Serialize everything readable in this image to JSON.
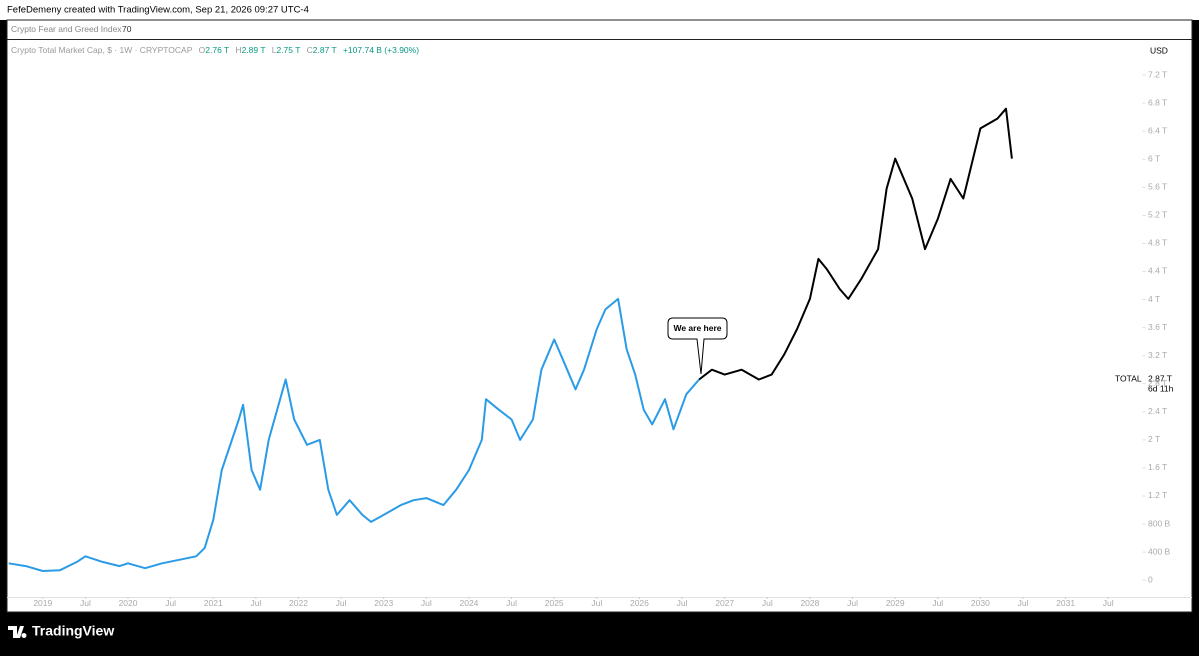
{
  "header": {
    "credit": "FefeDemeny created with TradingView.com, Sep 21, 2026 09:27 UTC-4"
  },
  "indicator": {
    "name": "Crypto Fear and Greed Index",
    "value": "70"
  },
  "legend": {
    "symbol": "Crypto Total Market Cap, $ · 1W · CRYPTOCAP",
    "o_label": "O",
    "open": "2.76 T",
    "h_label": "H",
    "high": "2.89 T",
    "l_label": "L",
    "low": "2.75 T",
    "c_label": "C",
    "close": "2.87 T",
    "change": "+107.74 B (+3.90%)"
  },
  "currency": "USD",
  "price_label": {
    "name": "TOTAL",
    "value": "2.87 T",
    "countdown": "6d 11h"
  },
  "footer": {
    "brand": "TradingView"
  },
  "chart_data": {
    "type": "line",
    "annotation": "We are here",
    "xlim": [
      2018.58,
      2031.55
    ],
    "xticks": [
      {
        "value": 2019,
        "label": "2019"
      },
      {
        "value": 2019.5,
        "label": "Jul"
      },
      {
        "value": 2020,
        "label": "2020"
      },
      {
        "value": 2020.5,
        "label": "Jul"
      },
      {
        "value": 2021,
        "label": "2021"
      },
      {
        "value": 2021.5,
        "label": "Jul"
      },
      {
        "value": 2022,
        "label": "2022"
      },
      {
        "value": 2022.5,
        "label": "Jul"
      },
      {
        "value": 2023,
        "label": "2023"
      },
      {
        "value": 2023.5,
        "label": "Jul"
      },
      {
        "value": 2024,
        "label": "2024"
      },
      {
        "value": 2024.5,
        "label": "Jul"
      },
      {
        "value": 2025,
        "label": "2025"
      },
      {
        "value": 2025.5,
        "label": "Jul"
      },
      {
        "value": 2026,
        "label": "2026"
      },
      {
        "value": 2026.5,
        "label": "Jul"
      },
      {
        "value": 2027,
        "label": "2027"
      },
      {
        "value": 2027.5,
        "label": "Jul"
      },
      {
        "value": 2028,
        "label": "2028"
      },
      {
        "value": 2028.5,
        "label": "Jul"
      },
      {
        "value": 2029,
        "label": "2029"
      },
      {
        "value": 2029.5,
        "label": "Jul"
      },
      {
        "value": 2030,
        "label": "2030"
      },
      {
        "value": 2030.5,
        "label": "Jul"
      },
      {
        "value": 2031,
        "label": "2031"
      },
      {
        "value": 2031.5,
        "label": "Jul"
      }
    ],
    "ylim": [
      -0.24,
      7.7
    ],
    "yticks": [
      0,
      {
        "value": 0.4,
        "label": "400 B"
      },
      {
        "value": 0.8,
        "label": "800 B"
      },
      {
        "value": 1.2,
        "label": "1.2 T"
      },
      {
        "value": 1.6,
        "label": "1.6 T"
      },
      {
        "value": 2,
        "label": "2 T"
      },
      {
        "value": 2.4,
        "label": "2.4 T"
      },
      {
        "value": 2.8,
        "label": "2.8 T"
      },
      {
        "value": 3.2,
        "label": "3.2 T"
      },
      {
        "value": 3.6,
        "label": "3.6 T"
      },
      {
        "value": 4,
        "label": "4 T"
      },
      {
        "value": 4.4,
        "label": "4.4 T"
      },
      {
        "value": 4.8,
        "label": "4.8 T"
      },
      {
        "value": 5.2,
        "label": "5.2 T"
      },
      {
        "value": 5.6,
        "label": "5.6 T"
      },
      {
        "value": 6,
        "label": "6 T"
      },
      {
        "value": 6.4,
        "label": "6.4 T"
      },
      {
        "value": 6.8,
        "label": "6.8 T"
      },
      {
        "value": 7.2,
        "label": "7.2 T"
      }
    ],
    "series": [
      {
        "color": "#2a9be6",
        "x": [
          2018.6,
          2018.8,
          2019.0,
          2019.2,
          2019.4,
          2019.5,
          2019.7,
          2019.9,
          2020.0,
          2020.2,
          2020.4,
          2020.6,
          2020.8,
          2020.9,
          2021.0,
          2021.1,
          2021.3,
          2021.35,
          2021.45,
          2021.55,
          2021.65,
          2021.8,
          2021.85,
          2021.95,
          2022.1,
          2022.25,
          2022.35,
          2022.45,
          2022.6,
          2022.75,
          2022.85,
          2023.0,
          2023.2,
          2023.35,
          2023.5,
          2023.7,
          2023.85,
          2024.0,
          2024.15,
          2024.2,
          2024.35,
          2024.5,
          2024.6,
          2024.75,
          2024.85,
          2025.0,
          2025.1,
          2025.25,
          2025.35,
          2025.5,
          2025.6,
          2025.75,
          2025.85,
          2025.95,
          2026.05,
          2026.15,
          2026.3,
          2026.4,
          2026.55,
          2026.7
        ],
        "values": [
          0.24,
          0.2,
          0.13,
          0.14,
          0.26,
          0.34,
          0.26,
          0.2,
          0.24,
          0.17,
          0.24,
          0.29,
          0.34,
          0.46,
          0.86,
          1.57,
          2.29,
          2.5,
          1.57,
          1.29,
          2.0,
          2.65,
          2.86,
          2.29,
          1.93,
          2.0,
          1.29,
          0.93,
          1.14,
          0.93,
          0.83,
          0.93,
          1.07,
          1.14,
          1.17,
          1.07,
          1.29,
          1.57,
          2.0,
          2.58,
          2.43,
          2.29,
          2.0,
          2.29,
          3.0,
          3.43,
          3.15,
          2.72,
          3.0,
          3.58,
          3.86,
          4.01,
          3.29,
          2.93,
          2.43,
          2.22,
          2.58,
          2.15,
          2.65,
          2.86
        ]
      },
      {
        "color": "#000000",
        "x": [
          2026.7,
          2026.85,
          2027.0,
          2027.2,
          2027.4,
          2027.55,
          2027.7,
          2027.85,
          2028.0,
          2028.1,
          2028.2,
          2028.35,
          2028.45,
          2028.6,
          2028.8,
          2028.9,
          2029.0,
          2029.2,
          2029.35,
          2029.5,
          2029.65,
          2029.8,
          2030.0,
          2030.2,
          2030.3,
          2030.37
        ],
        "values": [
          2.86,
          3.0,
          2.93,
          3.0,
          2.86,
          2.93,
          3.22,
          3.58,
          4.01,
          4.58,
          4.43,
          4.15,
          4.01,
          4.29,
          4.72,
          5.58,
          6.01,
          5.44,
          4.72,
          5.15,
          5.72,
          5.44,
          6.44,
          6.58,
          6.72,
          6.01
        ]
      }
    ]
  }
}
